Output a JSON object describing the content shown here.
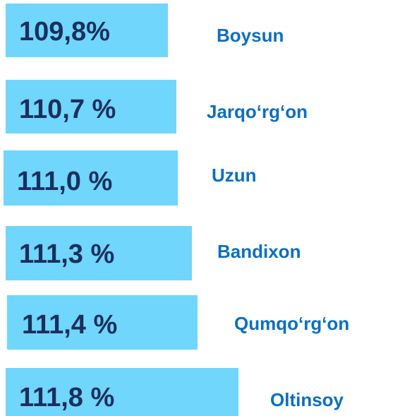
{
  "items": [
    {
      "percent": "109,8%",
      "name": "Boysun"
    },
    {
      "percent": "110,7 %",
      "name": "Jarqo‘rg‘on"
    },
    {
      "percent": "111,0 %",
      "name": "Uzun"
    },
    {
      "percent": "111,3 %",
      "name": "Bandixon"
    },
    {
      "percent": "111,4 %",
      "name": "Qumqo‘rg‘on"
    },
    {
      "percent": "111,8 %",
      "name": "Oltinsoy"
    }
  ]
}
